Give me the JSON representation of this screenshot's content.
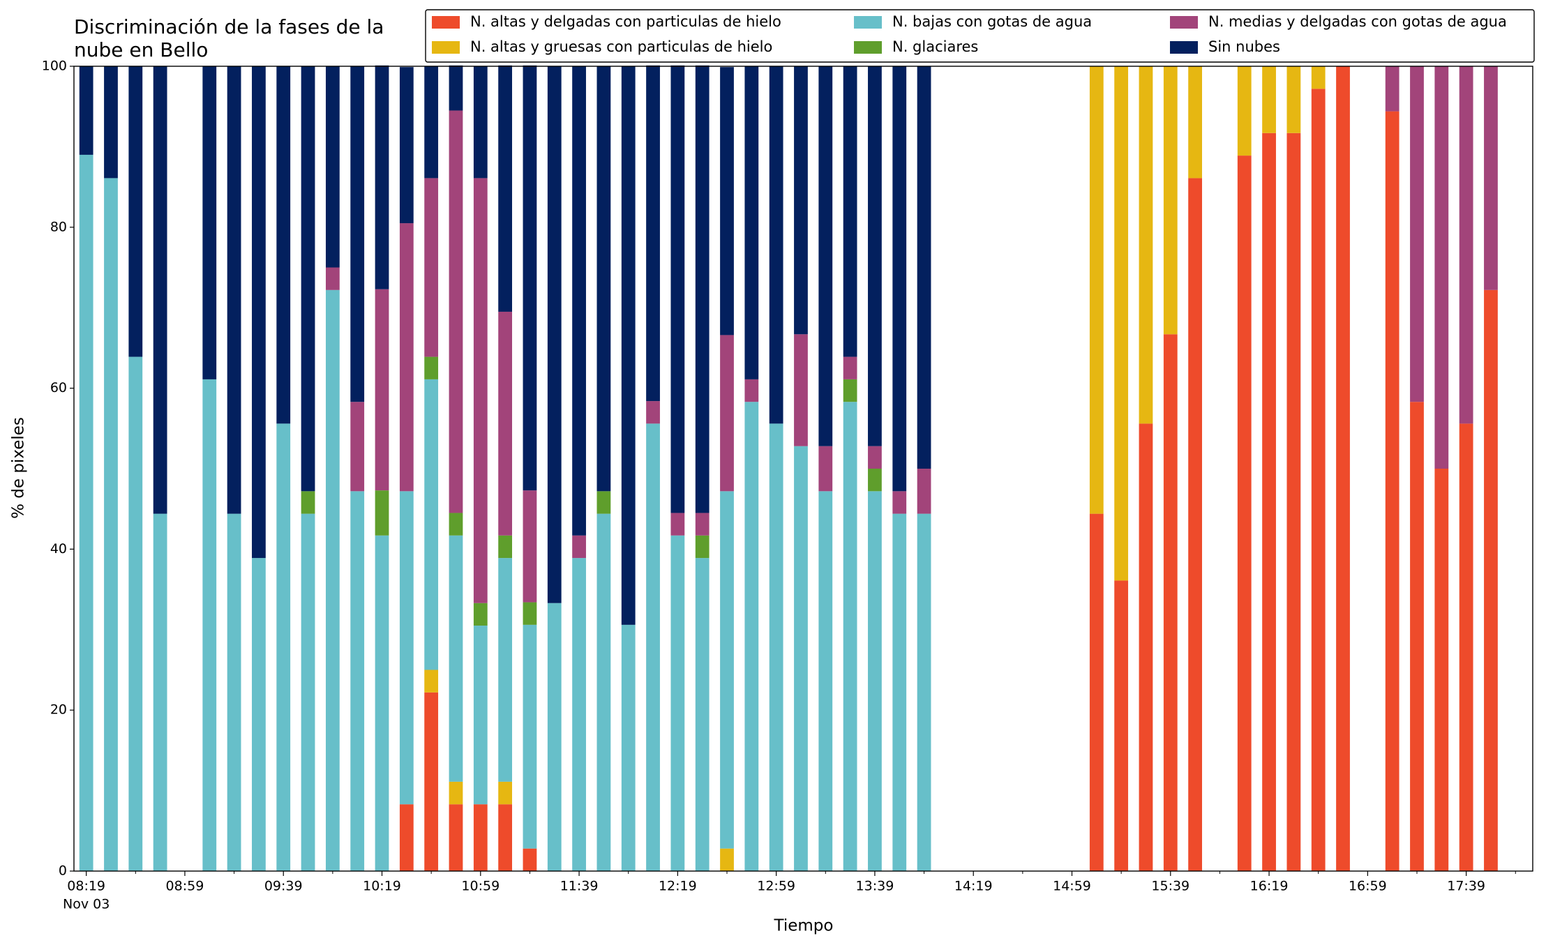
{
  "chart_data": {
    "type": "stacked_bar",
    "title": [
      "Discriminación de la fases de la",
      "nube en Bello"
    ],
    "xlabel": "Tiempo",
    "ylabel": "% de pixeles",
    "x_date_label": "Nov 03",
    "x": [
      "08:19",
      "08:29",
      "08:39",
      "08:49",
      "09:09",
      "09:19",
      "09:29",
      "09:39",
      "09:49",
      "09:59",
      "10:09",
      "10:19",
      "10:29",
      "10:39",
      "10:49",
      "10:59",
      "11:09",
      "11:19",
      "11:29",
      "11:39",
      "11:49",
      "11:59",
      "12:09",
      "12:19",
      "12:29",
      "12:39",
      "12:49",
      "12:59",
      "13:09",
      "13:19",
      "13:29",
      "13:39",
      "13:49",
      "13:59",
      "15:09",
      "15:19",
      "15:29",
      "15:39",
      "15:49",
      "16:09",
      "16:19",
      "16:29",
      "16:39",
      "16:49",
      "17:09",
      "17:19",
      "17:29",
      "17:39",
      "17:49"
    ],
    "series": [
      {
        "name": "N. altas y delgadas con particulas de hielo",
        "color": "#ee4b2b",
        "values": [
          0,
          0,
          0,
          0,
          0,
          0,
          0,
          0,
          0,
          0,
          0,
          0,
          8.3,
          22.2,
          8.3,
          8.3,
          8.3,
          2.8,
          0,
          0,
          0,
          0,
          0,
          0,
          0,
          0,
          0,
          0,
          0,
          0,
          0,
          0,
          0,
          0,
          44.4,
          36.1,
          55.6,
          66.7,
          86.1,
          88.9,
          91.7,
          91.7,
          97.2,
          100,
          94.4,
          58.3,
          50,
          55.6,
          72.2
        ]
      },
      {
        "name": "N. altas y gruesas con particulas de hielo",
        "color": "#e6b712",
        "values": [
          0,
          0,
          0,
          0,
          0,
          0,
          0,
          0,
          0,
          0,
          0,
          0,
          0,
          2.8,
          2.8,
          0,
          2.8,
          0,
          0,
          0,
          0,
          0,
          0,
          0,
          0,
          2.8,
          0,
          0,
          0,
          0,
          0,
          0,
          0,
          0,
          55.6,
          63.9,
          44.4,
          33.3,
          13.9,
          11.1,
          8.3,
          8.3,
          2.8,
          0,
          0,
          0,
          0,
          0,
          0
        ]
      },
      {
        "name": "N. bajas con gotas de agua",
        "color": "#67bfc9",
        "values": [
          89,
          86.1,
          63.9,
          44.4,
          61.1,
          44.4,
          38.9,
          55.6,
          44.4,
          72.2,
          47.2,
          41.7,
          38.9,
          36.1,
          30.6,
          22.2,
          27.8,
          27.8,
          33.3,
          38.9,
          44.4,
          30.6,
          55.6,
          41.7,
          38.9,
          44.4,
          58.3,
          55.6,
          52.8,
          47.2,
          58.3,
          47.2,
          44.4,
          44.4,
          0,
          0,
          0,
          0,
          0,
          0,
          0,
          0,
          0,
          0,
          0,
          0,
          0,
          0,
          0
        ]
      },
      {
        "name": "N. glaciares",
        "color": "#5f9e2c",
        "values": [
          0,
          0,
          0,
          0,
          0,
          0,
          0,
          0,
          2.8,
          0,
          0,
          5.6,
          0,
          2.8,
          2.8,
          2.8,
          2.8,
          2.8,
          0,
          0,
          2.8,
          0,
          0,
          0,
          2.8,
          0,
          0,
          0,
          0,
          0,
          2.8,
          2.8,
          0,
          0,
          0,
          0,
          0,
          0,
          0,
          0,
          0,
          0,
          0,
          0,
          0,
          0,
          0,
          0,
          0
        ]
      },
      {
        "name": "N. medias y delgadas con gotas de agua",
        "color": "#a2447a",
        "values": [
          0,
          0,
          0,
          0,
          0,
          0,
          0,
          0,
          0,
          2.8,
          11.1,
          25,
          33.3,
          22.2,
          50,
          52.8,
          27.8,
          13.9,
          0,
          2.8,
          0,
          0,
          2.8,
          2.8,
          2.8,
          19.4,
          2.8,
          0,
          13.9,
          5.6,
          2.8,
          2.8,
          2.8,
          5.6,
          0,
          0,
          0,
          0,
          0,
          0,
          0,
          0,
          0,
          0,
          5.6,
          41.7,
          50,
          44.4,
          27.8
        ]
      },
      {
        "name": "Sin nubes",
        "color": "#03205e",
        "values": [
          11,
          13.9,
          36.1,
          55.6,
          38.9,
          55.6,
          61.1,
          44.4,
          52.8,
          25,
          41.7,
          27.8,
          19.4,
          13.9,
          5.6,
          13.9,
          30.6,
          52.8,
          66.7,
          58.3,
          52.8,
          69.4,
          41.7,
          55.6,
          55.6,
          33.3,
          38.9,
          44.4,
          33.3,
          47.2,
          36.1,
          47.2,
          52.8,
          50,
          0,
          0,
          0,
          0,
          0,
          0,
          0,
          0,
          0,
          0,
          0,
          0,
          0,
          0,
          0
        ]
      }
    ],
    "xlim": [
      "08:14",
      "18:06"
    ],
    "xticks": [
      "08:19",
      "08:59",
      "09:39",
      "10:19",
      "10:59",
      "11:39",
      "12:19",
      "12:59",
      "13:39",
      "14:19",
      "14:59",
      "15:39",
      "16:19",
      "16:59",
      "17:39"
    ],
    "xminorticks": [
      "08:39",
      "09:19",
      "09:59",
      "10:39",
      "11:19",
      "11:59",
      "12:39",
      "13:19",
      "13:59",
      "14:39",
      "15:19",
      "15:59",
      "16:39",
      "17:19",
      "17:59"
    ],
    "ylim": [
      0,
      100
    ],
    "yticks": [
      0,
      20,
      40,
      60,
      80,
      100
    ],
    "legend": "top-right",
    "grid": false
  }
}
